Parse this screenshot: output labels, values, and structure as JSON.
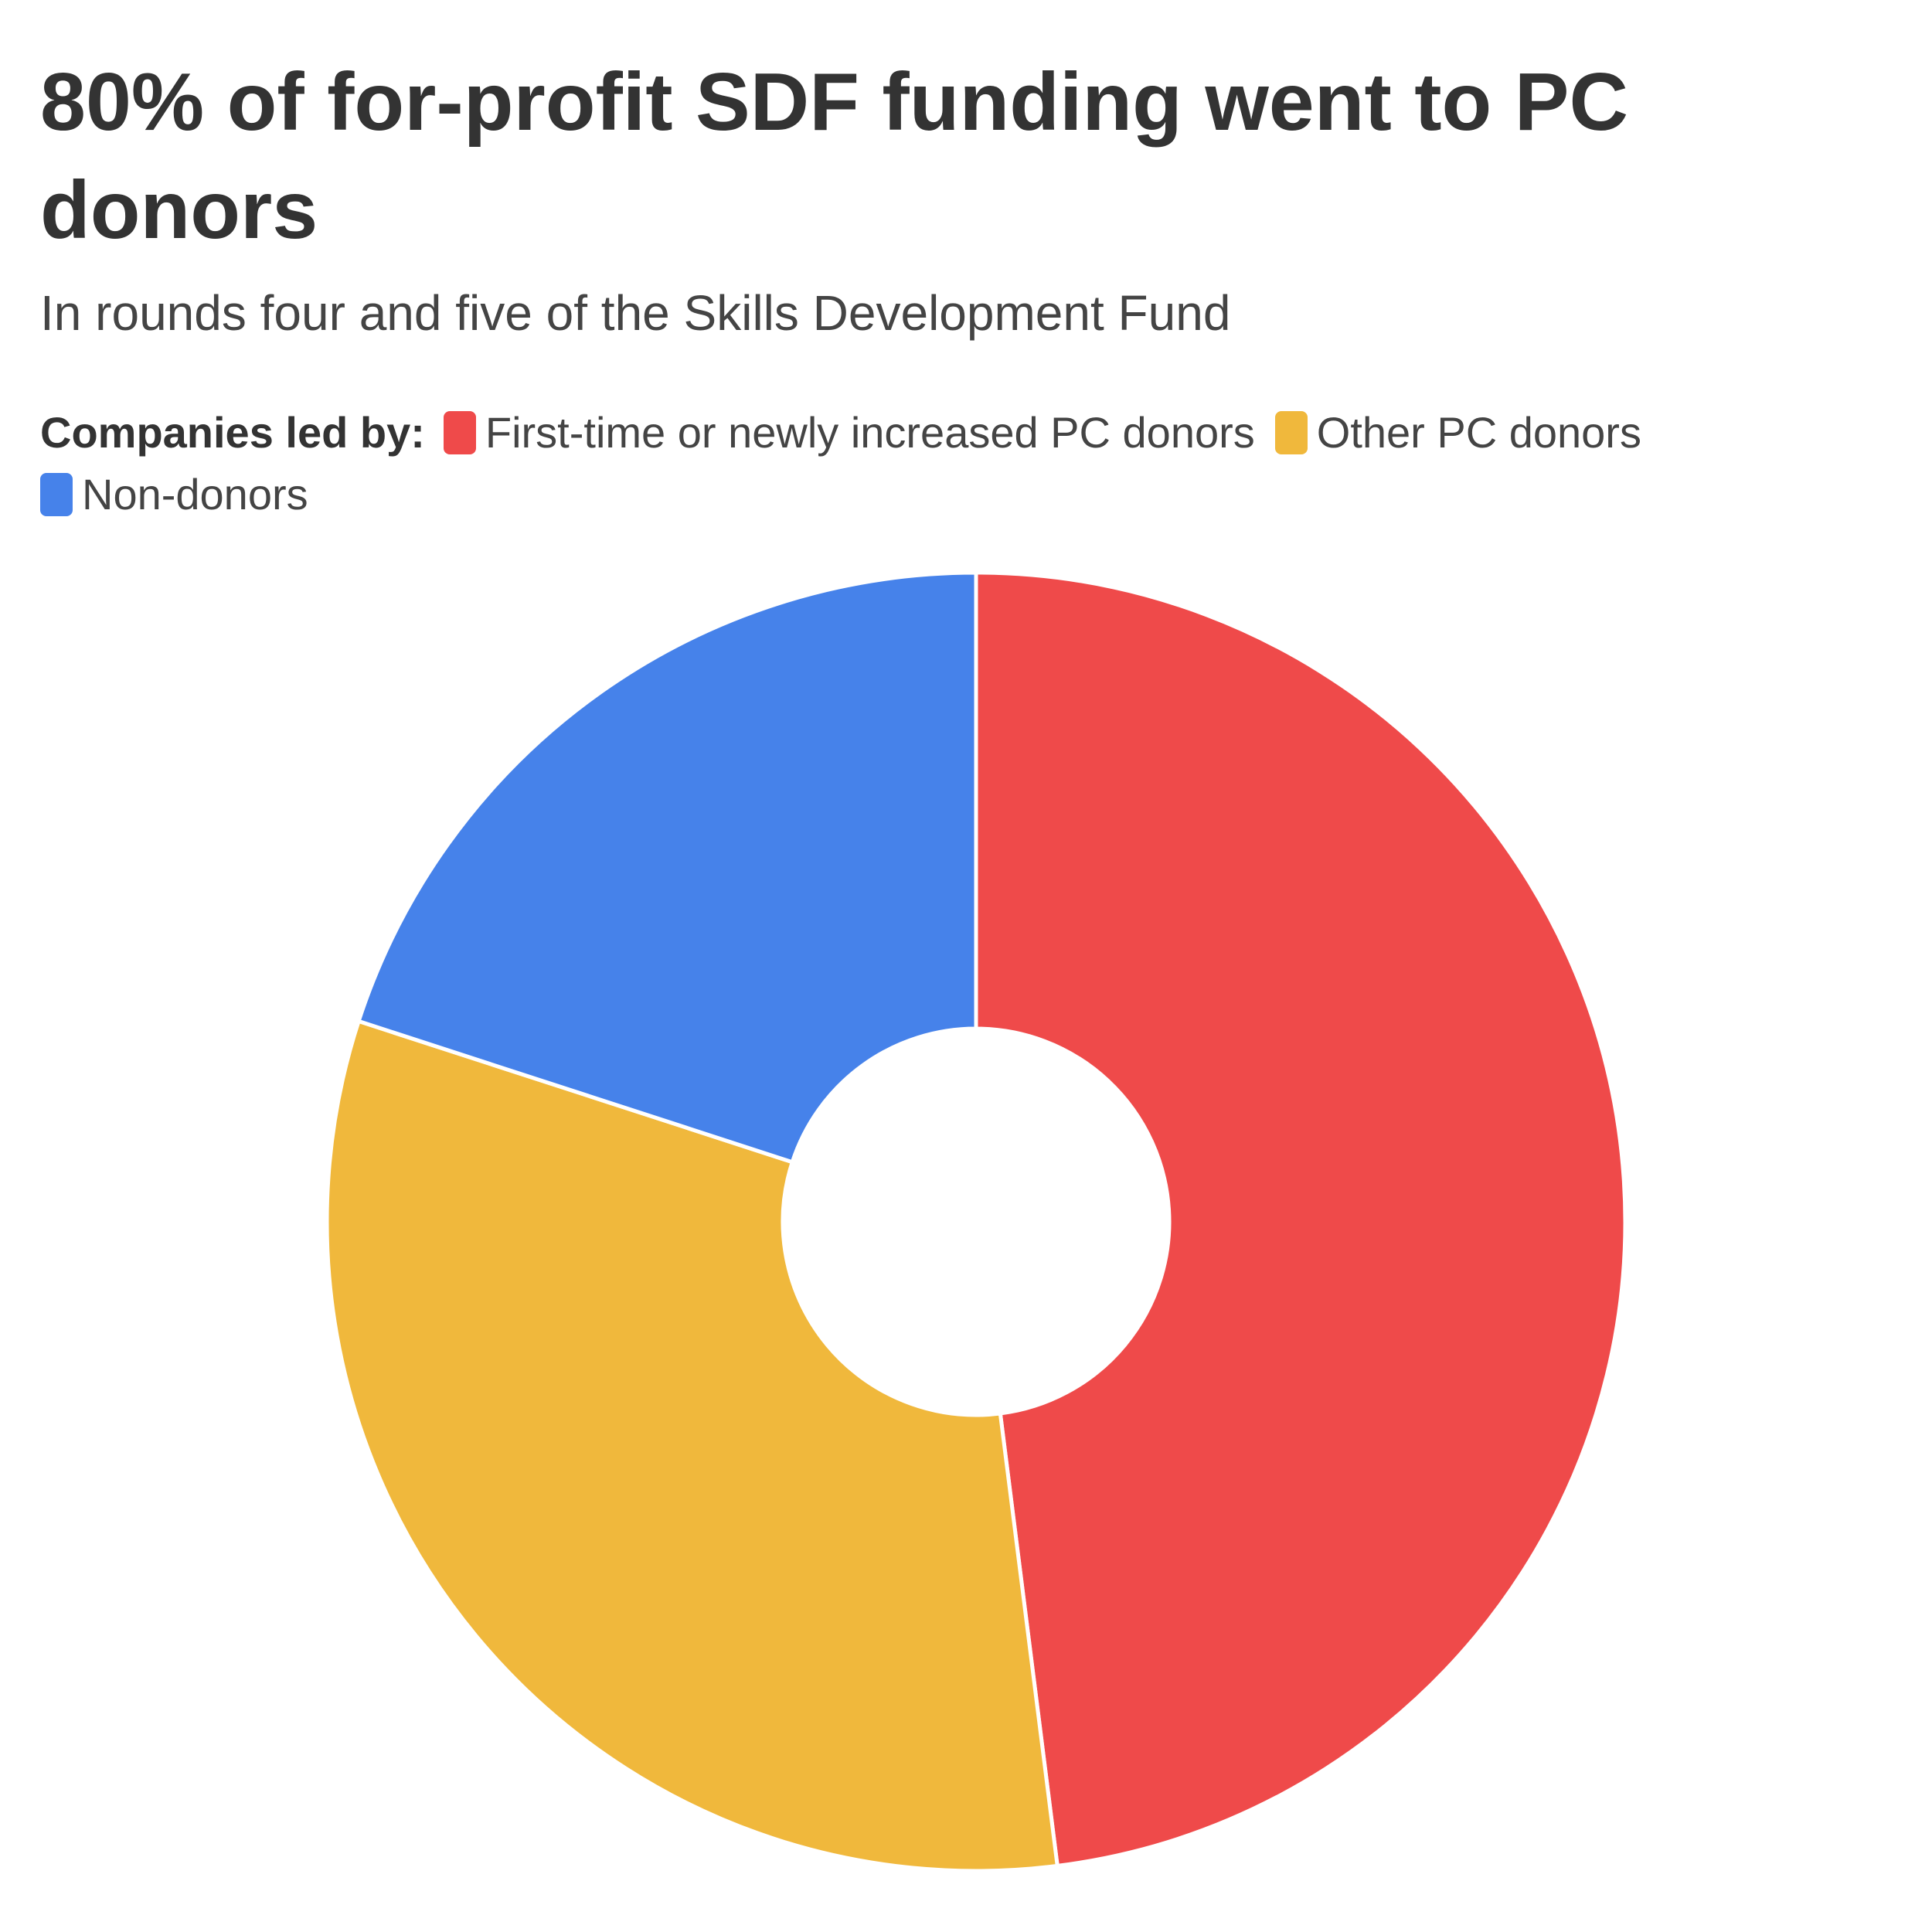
{
  "chart_data": {
    "type": "donut",
    "title": "80% of for-profit SDF funding went to PC donors",
    "subtitle": "In rounds four and five of the Skills Development Fund",
    "legend_title": "Companies led by:",
    "categories": [
      "First-time or newly increased PC donors",
      "Other PC donors",
      "Non-donors"
    ],
    "values": [
      48,
      32,
      20
    ],
    "colors": [
      "#ef4a4a",
      "#f0b83c",
      "#4682ea"
    ]
  }
}
